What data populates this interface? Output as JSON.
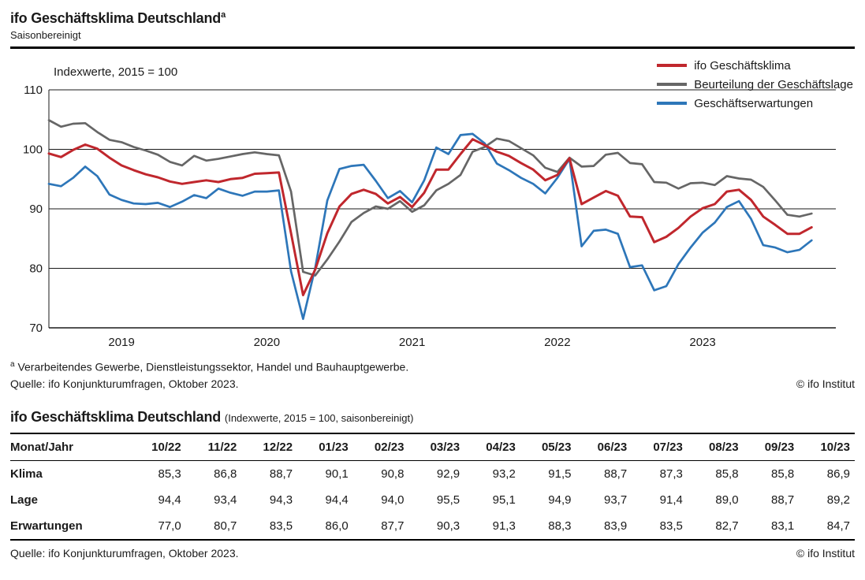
{
  "header": {
    "title": "ifo Geschäftsklima Deutschland",
    "title_sup": "a",
    "subtitle": "Saisonbereinigt"
  },
  "chart": {
    "footnote_marker": "a",
    "footnote_text": "Verarbeitendes Gewerbe, Dienstleistungssektor, Handel und Bauhauptgewerbe.",
    "source": "Quelle: ifo Konjunkturumfragen, Oktober 2023.",
    "copyright": "© ifo Institut"
  },
  "chart_data": {
    "type": "line",
    "title": "ifo Geschäftsklima Deutschland, saisonbereinigt",
    "ylabel": "Indexwerte, 2015 = 100",
    "ylim": [
      70,
      110
    ],
    "yticks": [
      70,
      80,
      90,
      100,
      110
    ],
    "grid": true,
    "legend_position": "top-right",
    "x_unit": "month",
    "x_start": "2018-07",
    "x_end": "2023-10",
    "x_slots": 66,
    "year_labels": [
      {
        "label": "2019",
        "index": 6
      },
      {
        "label": "2020",
        "index": 18
      },
      {
        "label": "2021",
        "index": 30
      },
      {
        "label": "2022",
        "index": 42
      },
      {
        "label": "2023",
        "index": 54
      }
    ],
    "series": [
      {
        "name": "ifo Geschäftsklima",
        "color": "#c0272d",
        "values": [
          99.3,
          98.7,
          99.9,
          100.8,
          100.1,
          98.6,
          97.3,
          96.5,
          95.8,
          95.3,
          94.6,
          94.2,
          94.5,
          94.8,
          94.5,
          95.0,
          95.2,
          95.9,
          96.0,
          96.1,
          85.9,
          75.5,
          79.8,
          85.9,
          90.4,
          92.5,
          93.2,
          92.5,
          90.9,
          92.0,
          90.3,
          92.7,
          96.6,
          96.6,
          99.2,
          101.7,
          100.7,
          99.6,
          98.9,
          97.7,
          96.6,
          94.8,
          95.7,
          98.5,
          90.8,
          91.9,
          93.0,
          92.2,
          88.7,
          88.6,
          84.4,
          85.3,
          86.8,
          88.7,
          90.1,
          90.8,
          92.9,
          93.2,
          91.5,
          88.7,
          87.3,
          85.8,
          85.8,
          86.9
        ]
      },
      {
        "name": "Beurteilung der Geschäftslage",
        "color": "#666666",
        "values": [
          104.9,
          103.8,
          104.3,
          104.4,
          102.9,
          101.6,
          101.2,
          100.4,
          99.8,
          99.1,
          97.9,
          97.3,
          98.9,
          98.1,
          98.4,
          98.8,
          99.2,
          99.5,
          99.2,
          99.0,
          92.9,
          79.4,
          78.8,
          81.5,
          84.5,
          87.8,
          89.3,
          90.4,
          90.0,
          91.3,
          89.5,
          90.6,
          93.1,
          94.2,
          95.7,
          99.6,
          100.4,
          101.8,
          101.4,
          100.2,
          99.0,
          96.9,
          96.2,
          98.6,
          97.1,
          97.2,
          99.1,
          99.4,
          97.7,
          97.5,
          94.5,
          94.4,
          93.4,
          94.3,
          94.4,
          94.0,
          95.5,
          95.1,
          94.9,
          93.7,
          91.4,
          89.0,
          88.7,
          89.2
        ]
      },
      {
        "name": "Geschäftserwartungen",
        "color": "#2d76b9",
        "values": [
          94.2,
          93.8,
          95.2,
          97.1,
          95.5,
          92.4,
          91.5,
          90.9,
          90.8,
          91.0,
          90.3,
          91.2,
          92.3,
          91.8,
          93.4,
          92.7,
          92.2,
          92.9,
          92.9,
          93.1,
          79.5,
          71.5,
          80.1,
          91.4,
          96.7,
          97.2,
          97.4,
          94.7,
          91.8,
          93.0,
          91.1,
          94.8,
          100.3,
          99.2,
          102.4,
          102.6,
          101.0,
          97.6,
          96.5,
          95.2,
          94.2,
          92.6,
          95.2,
          98.4,
          83.7,
          86.3,
          86.5,
          85.8,
          80.2,
          80.5,
          76.3,
          77.0,
          80.7,
          83.5,
          86.0,
          87.7,
          90.3,
          91.3,
          88.3,
          83.9,
          83.5,
          82.7,
          83.1,
          84.7
        ]
      }
    ]
  },
  "table": {
    "title": "ifo Geschäftsklima Deutschland",
    "title_note": "(Indexwerte, 2015 = 100, saisonbereinigt)",
    "col_header": "Monat/Jahr",
    "columns": [
      "10/22",
      "11/22",
      "12/22",
      "01/23",
      "02/23",
      "03/23",
      "04/23",
      "05/23",
      "06/23",
      "07/23",
      "08/23",
      "09/23",
      "10/23"
    ],
    "rows": [
      {
        "label": "Klima",
        "values": [
          "85,3",
          "86,8",
          "88,7",
          "90,1",
          "90,8",
          "92,9",
          "93,2",
          "91,5",
          "88,7",
          "87,3",
          "85,8",
          "85,8",
          "86,9"
        ]
      },
      {
        "label": "Lage",
        "values": [
          "94,4",
          "93,4",
          "94,3",
          "94,4",
          "94,0",
          "95,5",
          "95,1",
          "94,9",
          "93,7",
          "91,4",
          "89,0",
          "88,7",
          "89,2"
        ]
      },
      {
        "label": "Erwartungen",
        "values": [
          "77,0",
          "80,7",
          "83,5",
          "86,0",
          "87,7",
          "90,3",
          "91,3",
          "88,3",
          "83,9",
          "83,5",
          "82,7",
          "83,1",
          "84,7"
        ]
      }
    ],
    "source": "Quelle: ifo Konjunkturumfragen, Oktober 2023.",
    "copyright": "© ifo Institut"
  }
}
